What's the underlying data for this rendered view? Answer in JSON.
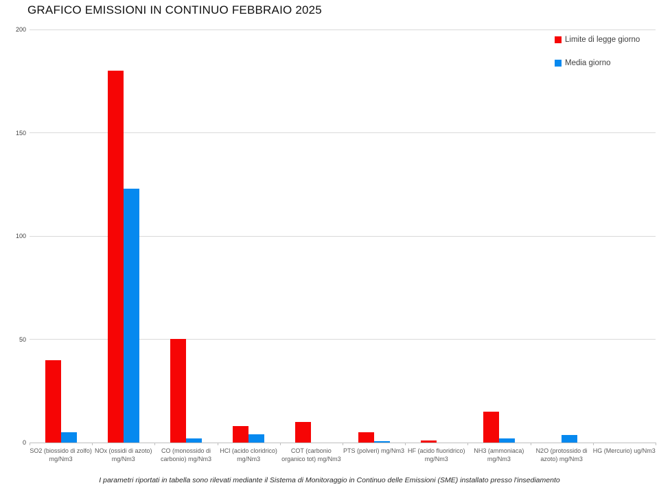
{
  "title": "GRAFICO EMISSIONI IN CONTINUO FEBBRAIO 2025",
  "footnote": "I parametri riportati in tabella sono rilevati mediante il Sistema di Monitoraggio in Continuo delle Emissioni (SME) installato presso l'insediamento",
  "colors": {
    "limite": "#f60505",
    "media": "#0689ef",
    "gridline": "#d9d9d9",
    "axis_text": "#595959"
  },
  "chart_data": {
    "type": "bar",
    "title": "GRAFICO EMISSIONI IN CONTINUO FEBBRAIO 2025",
    "categories": [
      "SO2 (biossido di zolfo) mg/Nm3",
      "NOx (ossidi di azoto) mg/Nm3",
      "CO (monossido di carbonio) mg/Nm3",
      "HCl (acido cloridrico) mg/Nm3",
      "COT (carbonio organico tot) mg/Nm3",
      "PTS (polveri) mg/Nm3",
      "HF (acido fluoridrico) mg/Nm3",
      "NH3 (ammoniaca) mg/Nm3",
      "N2O (protossido di azoto) mg/Nm3",
      "HG (Mercurio) ug/Nm3"
    ],
    "series": [
      {
        "name": "Limite di legge giorno",
        "color": "#f60505",
        "values": [
          40,
          180,
          50,
          8,
          10,
          5,
          1,
          15,
          0,
          0
        ]
      },
      {
        "name": "Media giorno",
        "color": "#0689ef",
        "values": [
          5,
          123,
          2,
          4,
          0,
          0.5,
          0,
          2,
          3.5,
          0
        ]
      }
    ],
    "xlabel": "",
    "ylabel": "",
    "ylim": [
      0,
      200
    ],
    "yticks": [
      0,
      50,
      100,
      150,
      200
    ],
    "grid": true,
    "legend_position": "top-right"
  }
}
